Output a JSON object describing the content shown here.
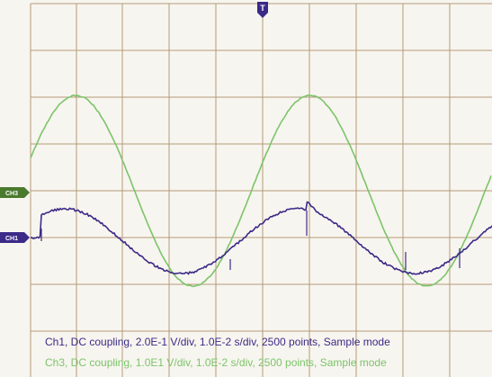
{
  "scope": {
    "trigger_marker": "T",
    "background": "#f7f5ef",
    "grid_color": "#b59a78",
    "channels": [
      {
        "id": "ch1",
        "marker": "CH1",
        "color": "#3b2a88",
        "marker_color": "#3b2a88",
        "caption": "Ch1, DC coupling, 2.0E-1 V/div, 1.0E-2 s/div, 2500 points, Sample mode"
      },
      {
        "id": "ch3",
        "marker": "CH3",
        "color": "#7cc46a",
        "marker_color": "#4a7a2e",
        "caption": "Ch3, DC coupling, 1.0E1 V/div, 1.0E-2 s/div, 2500 points, Sample mode"
      }
    ]
  }
}
